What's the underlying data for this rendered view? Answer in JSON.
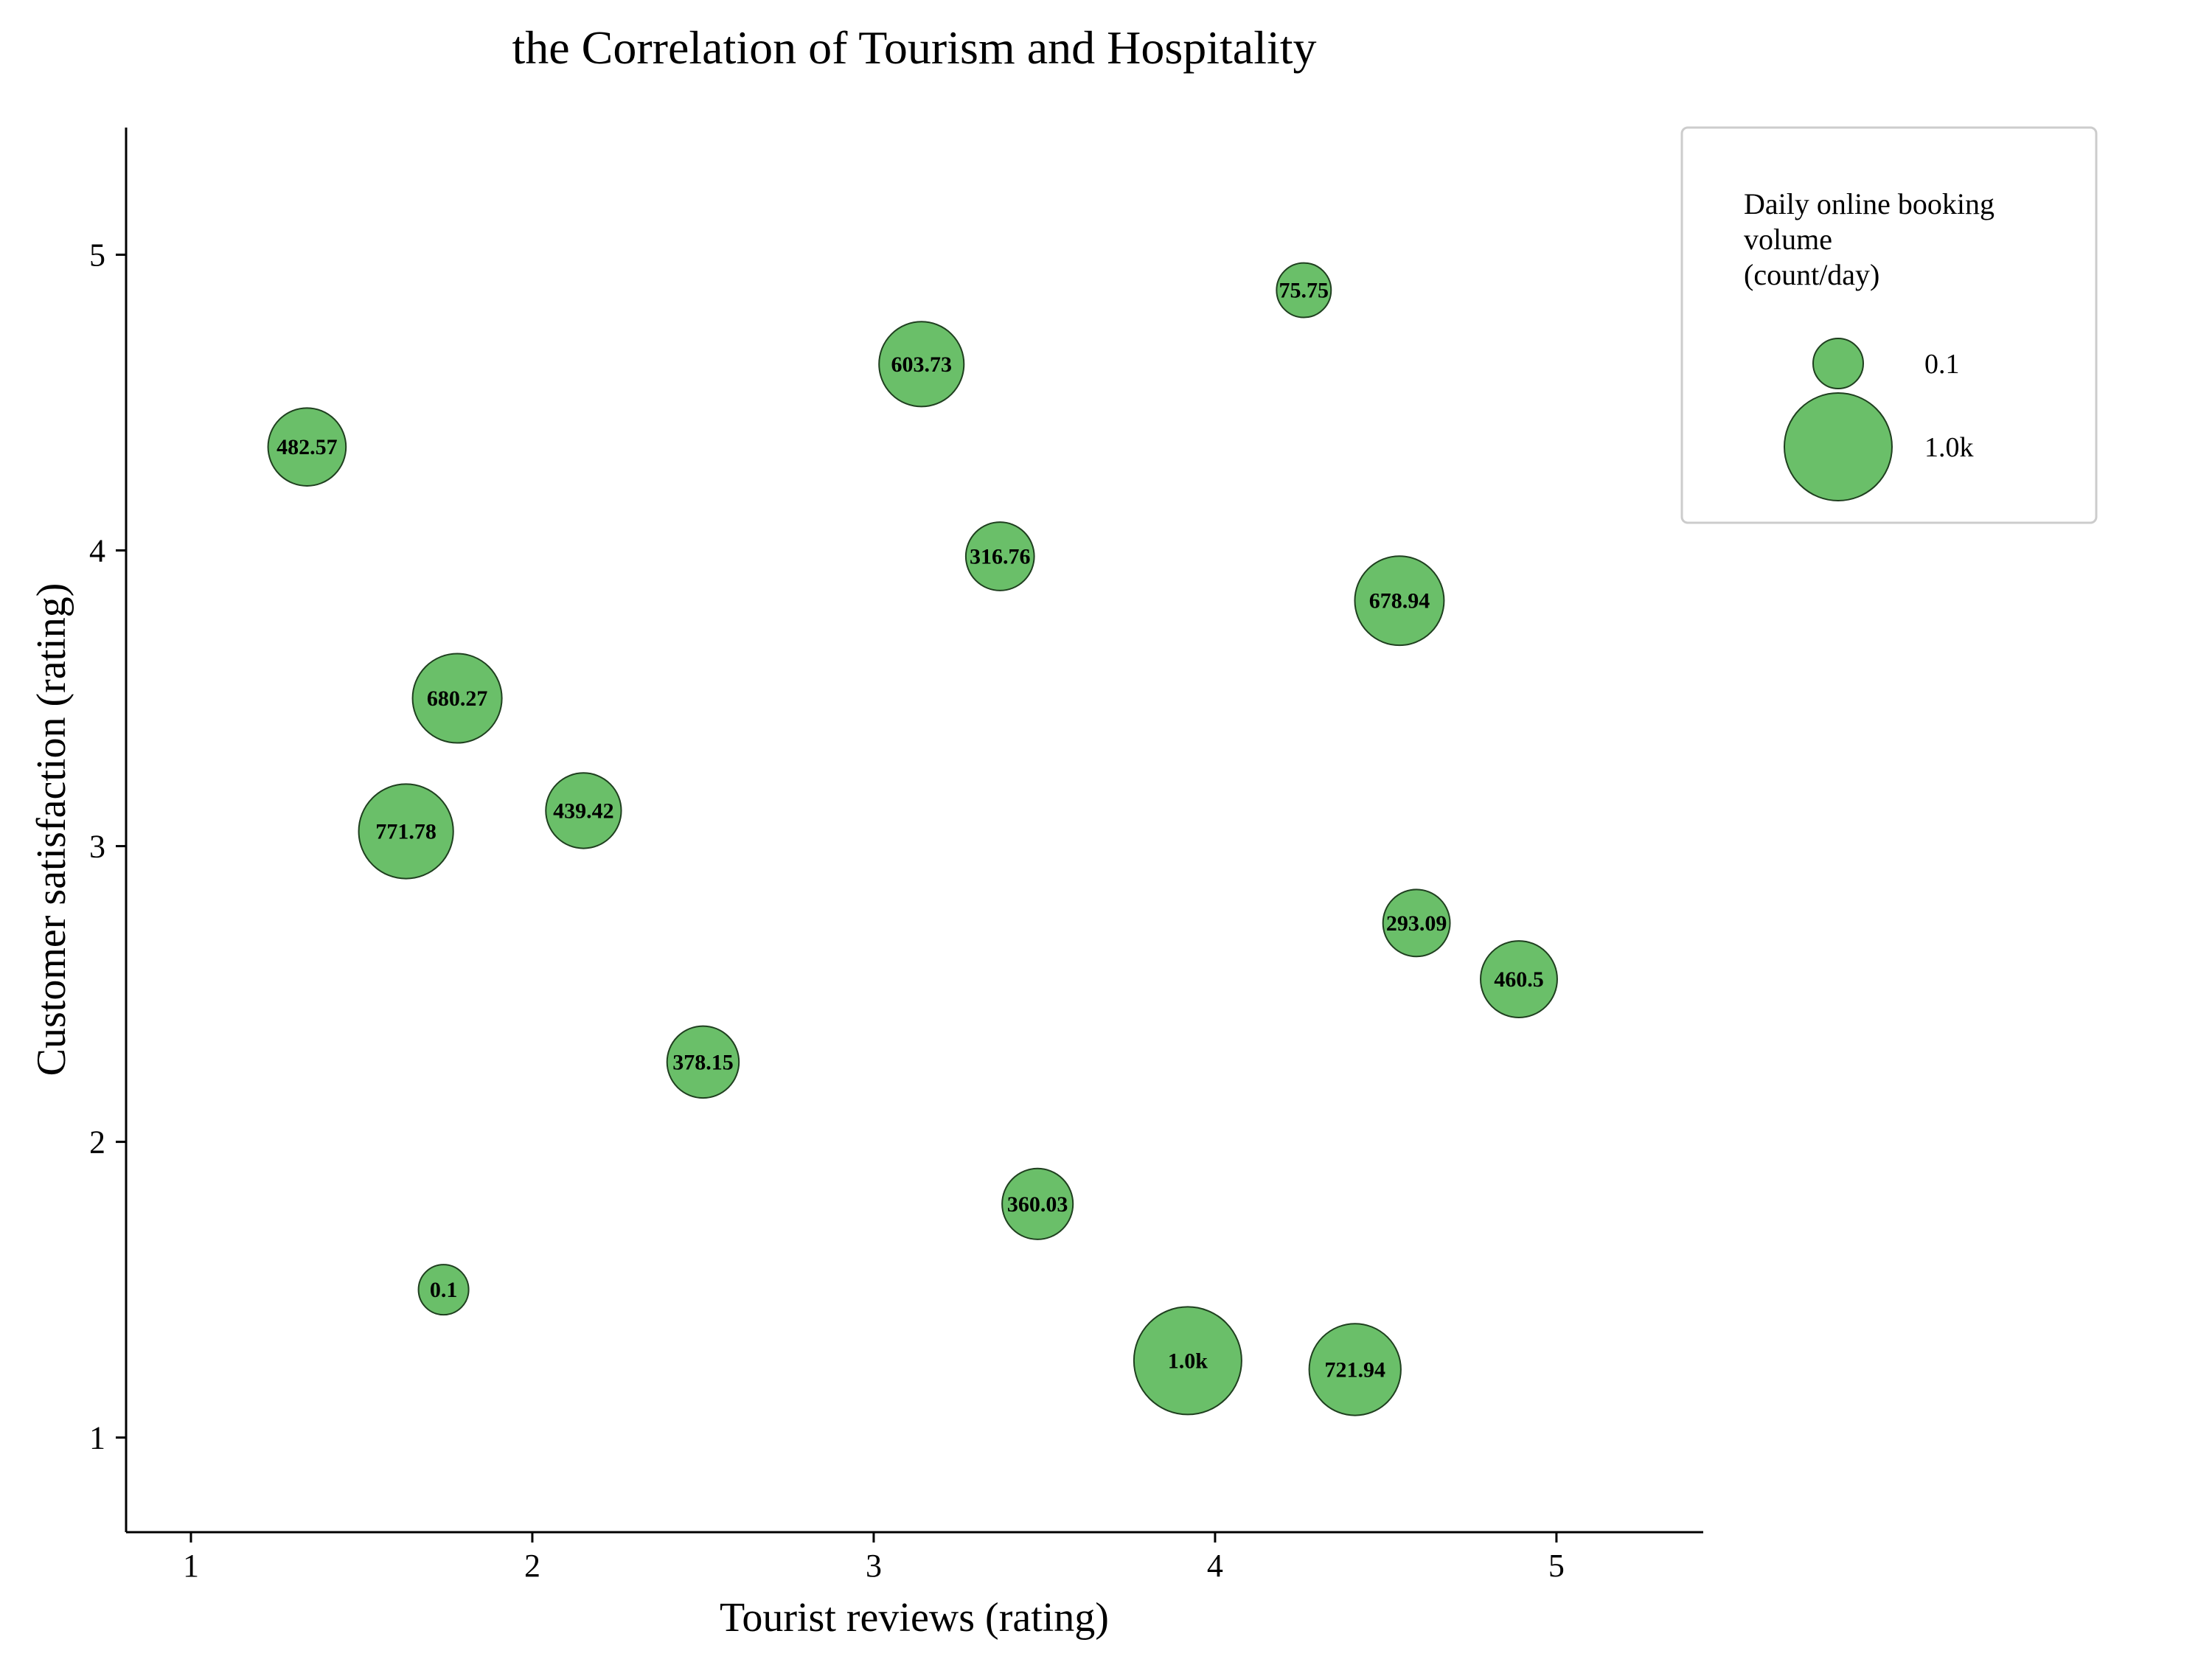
{
  "chart_data": {
    "type": "scatter",
    "title": "the Correlation of Tourism and Hospitality",
    "xlabel": "Tourist reviews (rating)",
    "ylabel": "Customer satisfaction (rating)",
    "xlim": [
      0.81,
      5.43
    ],
    "ylim": [
      0.68,
      5.43
    ],
    "xticks": [
      "1",
      "2",
      "3",
      "4",
      "5"
    ],
    "yticks": [
      "1",
      "2",
      "3",
      "4",
      "5"
    ],
    "grid": false,
    "legend_placement": "top-right outside plot",
    "bubble_color": "#6abf69",
    "edge_color": "#1f3f1f",
    "size_range": [
      0.1,
      1000
    ],
    "points": [
      {
        "x": 1.34,
        "y": 4.35,
        "size": 482.57,
        "label": "482.57"
      },
      {
        "x": 3.14,
        "y": 4.63,
        "size": 603.73,
        "label": "603.73"
      },
      {
        "x": 4.26,
        "y": 4.88,
        "size": 75.75,
        "label": "75.75"
      },
      {
        "x": 3.37,
        "y": 3.98,
        "size": 316.76,
        "label": "316.76"
      },
      {
        "x": 4.54,
        "y": 3.83,
        "size": 678.94,
        "label": "678.94"
      },
      {
        "x": 1.78,
        "y": 3.5,
        "size": 680.27,
        "label": "680.27"
      },
      {
        "x": 1.63,
        "y": 3.05,
        "size": 771.78,
        "label": "771.78"
      },
      {
        "x": 2.15,
        "y": 3.12,
        "size": 439.42,
        "label": "439.42"
      },
      {
        "x": 4.59,
        "y": 2.74,
        "size": 293.09,
        "label": "293.09"
      },
      {
        "x": 4.89,
        "y": 2.55,
        "size": 460.5,
        "label": "460.5"
      },
      {
        "x": 2.5,
        "y": 2.27,
        "size": 378.15,
        "label": "378.15"
      },
      {
        "x": 3.48,
        "y": 1.79,
        "size": 360.03,
        "label": "360.03"
      },
      {
        "x": 1.74,
        "y": 1.5,
        "size": 0.1,
        "label": "0.1"
      },
      {
        "x": 3.92,
        "y": 1.26,
        "size": 1000,
        "label": "1.0k"
      },
      {
        "x": 4.41,
        "y": 1.23,
        "size": 721.94,
        "label": "721.94"
      }
    ],
    "legend": {
      "title_lines": [
        "Daily online booking",
        "volume",
        "(count/day)"
      ],
      "entries": [
        {
          "size": 0.1,
          "label": "0.1"
        },
        {
          "size": 1000,
          "label": "1.0k"
        }
      ]
    }
  }
}
